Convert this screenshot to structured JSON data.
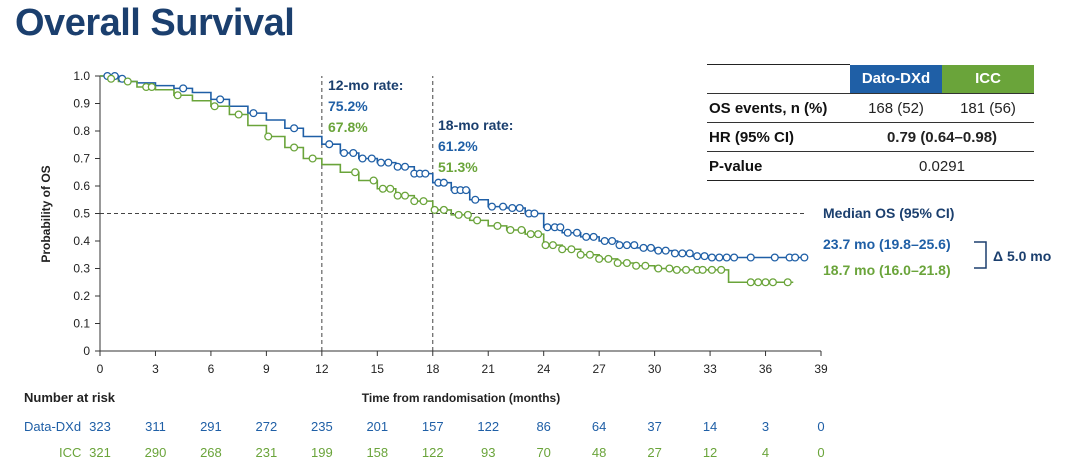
{
  "title": "Overall Survival",
  "colors": {
    "dato": "#1f5fa6",
    "icc": "#6aa43a",
    "navy": "#1b3f6e",
    "grid": "#444444"
  },
  "table": {
    "headers": [
      "Dato-DXd",
      "ICC"
    ],
    "rows": [
      {
        "label": "OS events, n (%)",
        "dato": "168 (52)",
        "icc": "181 (56)"
      },
      {
        "label": "HR (95% CI)",
        "value": "0.79 (0.64–0.98)"
      },
      {
        "label": "P-value",
        "value": "0.0291"
      }
    ]
  },
  "annotations": {
    "rate12": {
      "title": "12-mo rate:",
      "dato": "75.2%",
      "icc": "67.8%"
    },
    "rate18": {
      "title": "18-mo rate:",
      "dato": "61.2%",
      "icc": "51.3%"
    },
    "median_title": "Median OS (95% CI)",
    "median_dato": "23.7 mo (19.8–25.6)",
    "median_icc": "18.7 mo (16.0–21.8)",
    "delta": "Δ 5.0 mo"
  },
  "risk_table": {
    "title": "Number at risk",
    "rows": [
      {
        "name": "Data-DXd",
        "values": [
          323,
          311,
          291,
          272,
          235,
          201,
          157,
          122,
          86,
          64,
          37,
          14,
          3,
          0
        ]
      },
      {
        "name": "ICC",
        "values": [
          321,
          290,
          268,
          231,
          199,
          158,
          122,
          93,
          70,
          48,
          27,
          12,
          4,
          0
        ]
      }
    ]
  },
  "chart_data": {
    "type": "line",
    "step": true,
    "xlabel": "Time from randomisation (months)",
    "ylabel": "Probability of OS",
    "xlim": [
      0,
      39
    ],
    "ylim": [
      0,
      1.0
    ],
    "xticks": [
      0,
      3,
      6,
      9,
      12,
      15,
      18,
      21,
      24,
      27,
      30,
      33,
      36,
      39
    ],
    "yticks": [
      "0",
      "0.1",
      "0.2",
      "0.3",
      "0.4",
      "0.5",
      "0.6",
      "0.7",
      "0.8",
      "0.9",
      "1.0"
    ],
    "reference_lines": {
      "x": [
        12,
        18
      ],
      "y": [
        0.5
      ]
    },
    "series": [
      {
        "name": "Dato-DXd",
        "points": [
          [
            0,
            1.0
          ],
          [
            0.5,
            1.0
          ],
          [
            1,
            0.99
          ],
          [
            1.5,
            0.98
          ],
          [
            2,
            0.975
          ],
          [
            3,
            0.965
          ],
          [
            4,
            0.955
          ],
          [
            5,
            0.94
          ],
          [
            6,
            0.915
          ],
          [
            7,
            0.89
          ],
          [
            8,
            0.865
          ],
          [
            9,
            0.84
          ],
          [
            10,
            0.81
          ],
          [
            11,
            0.78
          ],
          [
            12,
            0.752
          ],
          [
            13,
            0.72
          ],
          [
            14,
            0.7
          ],
          [
            15,
            0.685
          ],
          [
            16,
            0.67
          ],
          [
            17,
            0.645
          ],
          [
            18,
            0.612
          ],
          [
            19,
            0.585
          ],
          [
            20,
            0.55
          ],
          [
            21,
            0.525
          ],
          [
            22,
            0.52
          ],
          [
            23,
            0.5
          ],
          [
            24,
            0.45
          ],
          [
            25,
            0.43
          ],
          [
            26,
            0.415
          ],
          [
            27,
            0.4
          ],
          [
            28,
            0.385
          ],
          [
            29,
            0.375
          ],
          [
            30,
            0.365
          ],
          [
            31,
            0.355
          ],
          [
            32,
            0.345
          ],
          [
            33,
            0.34
          ],
          [
            34,
            0.34
          ],
          [
            36,
            0.34
          ],
          [
            38,
            0.34
          ]
        ],
        "censor_x": [
          0.4,
          0.8,
          1.2,
          4.5,
          6.5,
          8.3,
          10.5,
          12.4,
          13.2,
          13.7,
          14.2,
          14.7,
          15.2,
          15.6,
          16.1,
          16.5,
          17.0,
          17.3,
          17.6,
          18.3,
          18.6,
          19.2,
          19.5,
          19.8,
          20.3,
          21.2,
          21.8,
          22.3,
          22.7,
          23.2,
          23.5,
          24.2,
          24.6,
          24.9,
          25.3,
          25.8,
          26.3,
          26.7,
          27.3,
          27.7,
          28.1,
          28.5,
          28.9,
          29.4,
          29.8,
          30.2,
          30.6,
          31.1,
          31.5,
          31.9,
          32.3,
          32.7,
          33.1,
          33.5,
          33.9,
          34.3,
          35.2,
          36.5,
          37.3,
          37.6,
          38.1
        ]
      },
      {
        "name": "ICC",
        "points": [
          [
            0,
            1.0
          ],
          [
            0.5,
            0.99
          ],
          [
            1,
            0.98
          ],
          [
            2,
            0.96
          ],
          [
            3,
            0.95
          ],
          [
            4,
            0.93
          ],
          [
            5,
            0.91
          ],
          [
            6,
            0.89
          ],
          [
            7,
            0.86
          ],
          [
            8,
            0.82
          ],
          [
            9,
            0.78
          ],
          [
            10,
            0.74
          ],
          [
            11,
            0.7
          ],
          [
            12,
            0.678
          ],
          [
            13,
            0.65
          ],
          [
            14,
            0.62
          ],
          [
            15,
            0.59
          ],
          [
            16,
            0.565
          ],
          [
            17,
            0.545
          ],
          [
            18,
            0.513
          ],
          [
            19,
            0.495
          ],
          [
            20,
            0.475
          ],
          [
            21,
            0.455
          ],
          [
            22,
            0.44
          ],
          [
            23,
            0.425
          ],
          [
            24,
            0.385
          ],
          [
            25,
            0.37
          ],
          [
            26,
            0.35
          ],
          [
            27,
            0.335
          ],
          [
            28,
            0.32
          ],
          [
            29,
            0.31
          ],
          [
            30,
            0.3
          ],
          [
            31,
            0.295
          ],
          [
            32,
            0.295
          ],
          [
            33,
            0.295
          ],
          [
            34,
            0.25
          ],
          [
            36,
            0.25
          ],
          [
            37.5,
            0.25
          ]
        ],
        "censor_x": [
          0.6,
          1.5,
          2.5,
          2.8,
          4.2,
          6.2,
          7.5,
          9.1,
          10.5,
          11.5,
          13.8,
          14.8,
          15.3,
          15.7,
          16.1,
          16.5,
          17.0,
          17.5,
          18.1,
          18.6,
          19.4,
          19.9,
          20.4,
          21.5,
          22.2,
          22.8,
          23.3,
          23.7,
          24.1,
          24.5,
          25.0,
          25.5,
          26.0,
          26.5,
          27.0,
          27.5,
          28.0,
          28.5,
          29.0,
          29.5,
          30.2,
          30.8,
          31.2,
          31.7,
          32.3,
          32.6,
          33.1,
          33.6,
          35.2,
          35.6,
          36.0,
          36.4,
          37.2
        ]
      }
    ]
  }
}
